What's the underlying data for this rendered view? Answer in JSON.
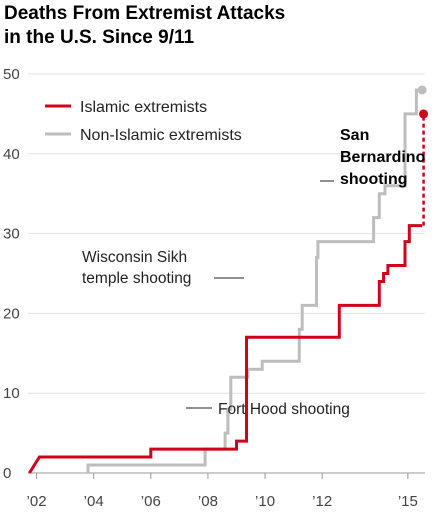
{
  "chart_data": {
    "type": "line",
    "title_lines": [
      "Deaths From Extremist Attacks",
      "in the U.S. Since 9/11"
    ],
    "xlabel": "",
    "ylabel": "",
    "xlim": [
      2001.7,
      2015.6
    ],
    "ylim": [
      0,
      50
    ],
    "x_ticks": [
      {
        "value": 2002,
        "label": "’02"
      },
      {
        "value": 2004,
        "label": "’04"
      },
      {
        "value": 2006,
        "label": "’06"
      },
      {
        "value": 2008,
        "label": "’08"
      },
      {
        "value": 2010,
        "label": "’10"
      },
      {
        "value": 2012,
        "label": "’12"
      },
      {
        "value": 2015,
        "label": "’15"
      }
    ],
    "y_ticks": [
      0,
      10,
      20,
      30,
      40,
      50
    ],
    "grid": true,
    "legend_position": "top-left",
    "series": [
      {
        "name": "Islamic extremists",
        "color": "#d0021b",
        "step": true,
        "points": [
          [
            2001.75,
            0
          ],
          [
            2002.1,
            2
          ],
          [
            2006.0,
            2
          ],
          [
            2006.0,
            3
          ],
          [
            2009.0,
            3
          ],
          [
            2009.0,
            4
          ],
          [
            2009.35,
            4
          ],
          [
            2009.35,
            17
          ],
          [
            2012.6,
            17
          ],
          [
            2012.6,
            21
          ],
          [
            2014.0,
            21
          ],
          [
            2014.0,
            22
          ],
          [
            2014.0,
            24
          ],
          [
            2014.15,
            24
          ],
          [
            2014.15,
            25
          ],
          [
            2014.3,
            25
          ],
          [
            2014.3,
            26
          ],
          [
            2014.9,
            26
          ],
          [
            2014.9,
            29
          ],
          [
            2015.05,
            29
          ],
          [
            2015.05,
            31
          ],
          [
            2015.5,
            31
          ]
        ],
        "final_point": [
          2015.55,
          45
        ],
        "final_segment_style": "dashed"
      },
      {
        "name": "Non-Islamic extremists",
        "color": "#bdbdbd",
        "step": true,
        "points": [
          [
            2003.8,
            0
          ],
          [
            2003.8,
            1
          ],
          [
            2007.9,
            1
          ],
          [
            2007.9,
            3
          ],
          [
            2008.6,
            3
          ],
          [
            2008.6,
            5
          ],
          [
            2008.7,
            5
          ],
          [
            2008.7,
            8
          ],
          [
            2008.8,
            8
          ],
          [
            2008.8,
            12
          ],
          [
            2009.4,
            12
          ],
          [
            2009.4,
            13
          ],
          [
            2009.9,
            13
          ],
          [
            2009.9,
            14
          ],
          [
            2011.2,
            14
          ],
          [
            2011.2,
            18
          ],
          [
            2011.3,
            18
          ],
          [
            2011.3,
            21
          ],
          [
            2011.8,
            21
          ],
          [
            2011.8,
            27
          ],
          [
            2011.85,
            27
          ],
          [
            2011.85,
            29
          ],
          [
            2013.8,
            29
          ],
          [
            2013.8,
            32
          ],
          [
            2014.0,
            32
          ],
          [
            2014.0,
            35
          ],
          [
            2014.2,
            35
          ],
          [
            2014.2,
            36
          ],
          [
            2014.9,
            36
          ],
          [
            2014.9,
            45
          ],
          [
            2015.3,
            45
          ],
          [
            2015.3,
            48
          ],
          [
            2015.5,
            48
          ]
        ],
        "final_point": [
          2015.5,
          48
        ]
      }
    ],
    "annotations": [
      {
        "lines": [
          "Wisconsin Sikh",
          "temple shooting"
        ],
        "x": 2012.6,
        "y": 27,
        "style": "normal"
      },
      {
        "lines": [
          "Fort Hood shooting"
        ],
        "x": 2009.5,
        "y": 8,
        "style": "normal"
      },
      {
        "lines": [
          "San",
          "Bernardino",
          "shooting"
        ],
        "x": 2015.55,
        "y": 38,
        "style": "bold"
      }
    ]
  }
}
